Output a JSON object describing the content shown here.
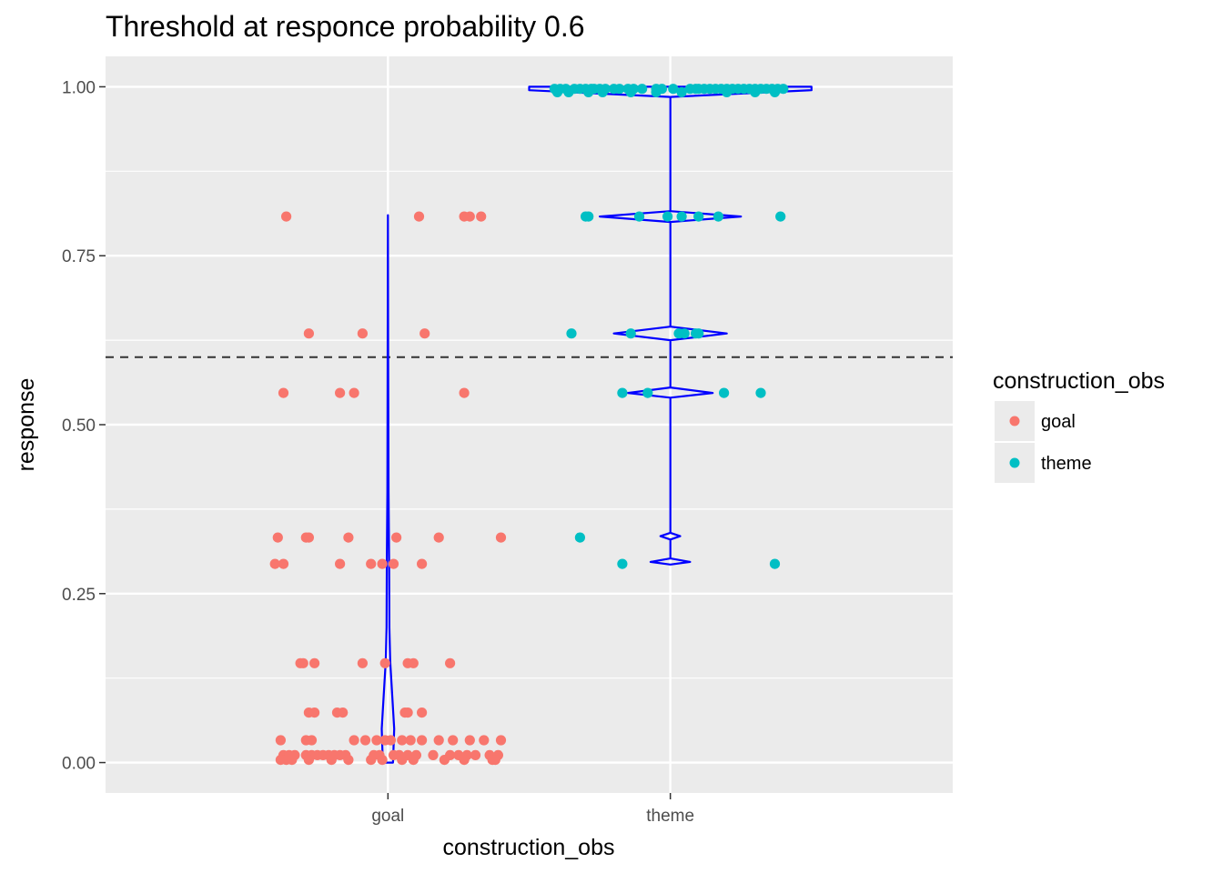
{
  "chart_data": {
    "type": "scatter",
    "title": "Threshold at responce probability 0.6",
    "xlabel": "construction_obs",
    "ylabel": "response",
    "categories": [
      "goal",
      "theme"
    ],
    "ylim": [
      -0.045,
      1.045
    ],
    "yticks": [
      0.0,
      0.25,
      0.5,
      0.75,
      1.0
    ],
    "ytick_labels": [
      "0.00",
      "0.25",
      "0.50",
      "0.75",
      "1.00"
    ],
    "threshold": 0.6,
    "grid": true,
    "legend": {
      "title": "construction_obs",
      "placement": "right",
      "entries": [
        {
          "label": "goal",
          "color": "#F8766D"
        },
        {
          "label": "theme",
          "color": "#00BFC4"
        }
      ]
    },
    "colors": {
      "goal": "#F8766D",
      "theme": "#00BFC4",
      "violin": "#0000FF",
      "threshold_line": "#333333",
      "panel": "#EBEBEB"
    },
    "violin_halfwidth": {
      "goal": [
        [
          0.0,
          0.018
        ],
        [
          0.05,
          0.022
        ],
        [
          0.1,
          0.015
        ],
        [
          0.15,
          0.008
        ],
        [
          0.2,
          0.005
        ],
        [
          0.3,
          0.004
        ],
        [
          0.4,
          0.002
        ],
        [
          0.6,
          0.001
        ],
        [
          0.81,
          0.0
        ]
      ],
      "theme": [
        [
          0.293,
          0.0
        ],
        [
          0.297,
          0.07
        ],
        [
          0.302,
          0.0
        ],
        [
          0.33,
          0.0
        ],
        [
          0.335,
          0.035
        ],
        [
          0.34,
          0.0
        ],
        [
          0.54,
          0.0
        ],
        [
          0.547,
          0.15
        ],
        [
          0.555,
          0.0
        ],
        [
          0.625,
          0.0
        ],
        [
          0.635,
          0.2
        ],
        [
          0.645,
          0.0
        ],
        [
          0.8,
          0.0
        ],
        [
          0.808,
          0.25
        ],
        [
          0.816,
          0.0
        ],
        [
          0.985,
          0.0
        ],
        [
          0.995,
          0.5
        ],
        [
          1.0,
          0.5
        ]
      ]
    },
    "series": [
      {
        "name": "goal",
        "points": [
          {
            "x": -0.36,
            "y": 0.808
          },
          {
            "x": 0.11,
            "y": 0.808
          },
          {
            "x": 0.27,
            "y": 0.808
          },
          {
            "x": 0.29,
            "y": 0.808
          },
          {
            "x": 0.33,
            "y": 0.808
          },
          {
            "x": -0.28,
            "y": 0.635
          },
          {
            "x": -0.09,
            "y": 0.635
          },
          {
            "x": 0.13,
            "y": 0.635
          },
          {
            "x": -0.37,
            "y": 0.547
          },
          {
            "x": -0.17,
            "y": 0.547
          },
          {
            "x": -0.12,
            "y": 0.547
          },
          {
            "x": 0.27,
            "y": 0.547
          },
          {
            "x": -0.39,
            "y": 0.333
          },
          {
            "x": -0.29,
            "y": 0.333
          },
          {
            "x": -0.28,
            "y": 0.333
          },
          {
            "x": -0.14,
            "y": 0.333
          },
          {
            "x": 0.03,
            "y": 0.333
          },
          {
            "x": 0.18,
            "y": 0.333
          },
          {
            "x": 0.4,
            "y": 0.333
          },
          {
            "x": -0.4,
            "y": 0.294
          },
          {
            "x": -0.37,
            "y": 0.294
          },
          {
            "x": -0.17,
            "y": 0.294
          },
          {
            "x": -0.06,
            "y": 0.294
          },
          {
            "x": -0.02,
            "y": 0.294
          },
          {
            "x": 0.02,
            "y": 0.294
          },
          {
            "x": 0.12,
            "y": 0.294
          },
          {
            "x": -0.31,
            "y": 0.147
          },
          {
            "x": -0.3,
            "y": 0.147
          },
          {
            "x": -0.26,
            "y": 0.147
          },
          {
            "x": -0.09,
            "y": 0.147
          },
          {
            "x": -0.01,
            "y": 0.147
          },
          {
            "x": 0.07,
            "y": 0.147
          },
          {
            "x": 0.09,
            "y": 0.147
          },
          {
            "x": 0.22,
            "y": 0.147
          },
          {
            "x": -0.28,
            "y": 0.074
          },
          {
            "x": -0.26,
            "y": 0.074
          },
          {
            "x": -0.18,
            "y": 0.074
          },
          {
            "x": -0.16,
            "y": 0.074
          },
          {
            "x": 0.06,
            "y": 0.074
          },
          {
            "x": 0.07,
            "y": 0.074
          },
          {
            "x": 0.12,
            "y": 0.074
          },
          {
            "x": -0.38,
            "y": 0.033
          },
          {
            "x": -0.29,
            "y": 0.033
          },
          {
            "x": -0.27,
            "y": 0.033
          },
          {
            "x": -0.12,
            "y": 0.033
          },
          {
            "x": -0.08,
            "y": 0.033
          },
          {
            "x": -0.04,
            "y": 0.033
          },
          {
            "x": -0.01,
            "y": 0.033
          },
          {
            "x": 0.01,
            "y": 0.033
          },
          {
            "x": 0.05,
            "y": 0.033
          },
          {
            "x": 0.08,
            "y": 0.033
          },
          {
            "x": 0.12,
            "y": 0.033
          },
          {
            "x": 0.18,
            "y": 0.033
          },
          {
            "x": 0.23,
            "y": 0.033
          },
          {
            "x": 0.29,
            "y": 0.033
          },
          {
            "x": 0.34,
            "y": 0.033
          },
          {
            "x": 0.4,
            "y": 0.033
          },
          {
            "x": -0.37,
            "y": 0.011
          },
          {
            "x": -0.35,
            "y": 0.011
          },
          {
            "x": -0.33,
            "y": 0.011
          },
          {
            "x": -0.29,
            "y": 0.011
          },
          {
            "x": -0.27,
            "y": 0.011
          },
          {
            "x": -0.25,
            "y": 0.011
          },
          {
            "x": -0.23,
            "y": 0.011
          },
          {
            "x": -0.21,
            "y": 0.011
          },
          {
            "x": -0.19,
            "y": 0.011
          },
          {
            "x": -0.17,
            "y": 0.011
          },
          {
            "x": -0.15,
            "y": 0.011
          },
          {
            "x": -0.05,
            "y": 0.011
          },
          {
            "x": -0.03,
            "y": 0.011
          },
          {
            "x": 0.02,
            "y": 0.011
          },
          {
            "x": 0.04,
            "y": 0.011
          },
          {
            "x": 0.07,
            "y": 0.011
          },
          {
            "x": 0.1,
            "y": 0.011
          },
          {
            "x": 0.16,
            "y": 0.011
          },
          {
            "x": 0.22,
            "y": 0.011
          },
          {
            "x": 0.25,
            "y": 0.011
          },
          {
            "x": 0.28,
            "y": 0.011
          },
          {
            "x": 0.31,
            "y": 0.011
          },
          {
            "x": 0.36,
            "y": 0.011
          },
          {
            "x": 0.39,
            "y": 0.011
          },
          {
            "x": -0.38,
            "y": 0.004
          },
          {
            "x": -0.36,
            "y": 0.004
          },
          {
            "x": -0.34,
            "y": 0.004
          },
          {
            "x": -0.28,
            "y": 0.004
          },
          {
            "x": -0.2,
            "y": 0.004
          },
          {
            "x": -0.14,
            "y": 0.004
          },
          {
            "x": -0.06,
            "y": 0.004
          },
          {
            "x": -0.02,
            "y": 0.004
          },
          {
            "x": 0.05,
            "y": 0.004
          },
          {
            "x": 0.09,
            "y": 0.004
          },
          {
            "x": 0.2,
            "y": 0.004
          },
          {
            "x": 0.27,
            "y": 0.004
          },
          {
            "x": 0.37,
            "y": 0.004
          },
          {
            "x": 0.38,
            "y": 0.004
          }
        ]
      },
      {
        "name": "theme",
        "points": [
          {
            "x": -0.41,
            "y": 0.997
          },
          {
            "x": -0.39,
            "y": 0.997
          },
          {
            "x": -0.37,
            "y": 0.997
          },
          {
            "x": -0.34,
            "y": 0.997
          },
          {
            "x": -0.32,
            "y": 0.997
          },
          {
            "x": -0.3,
            "y": 0.997
          },
          {
            "x": -0.28,
            "y": 0.997
          },
          {
            "x": -0.27,
            "y": 0.997
          },
          {
            "x": -0.25,
            "y": 0.997
          },
          {
            "x": -0.23,
            "y": 0.997
          },
          {
            "x": -0.2,
            "y": 0.997
          },
          {
            "x": -0.18,
            "y": 0.997
          },
          {
            "x": -0.15,
            "y": 0.997
          },
          {
            "x": -0.13,
            "y": 0.997
          },
          {
            "x": -0.1,
            "y": 0.997
          },
          {
            "x": -0.05,
            "y": 0.997
          },
          {
            "x": -0.03,
            "y": 0.997
          },
          {
            "x": 0.01,
            "y": 0.997
          },
          {
            "x": 0.07,
            "y": 0.997
          },
          {
            "x": 0.09,
            "y": 0.997
          },
          {
            "x": 0.1,
            "y": 0.997
          },
          {
            "x": 0.12,
            "y": 0.997
          },
          {
            "x": 0.14,
            "y": 0.997
          },
          {
            "x": 0.16,
            "y": 0.997
          },
          {
            "x": 0.18,
            "y": 0.997
          },
          {
            "x": 0.2,
            "y": 0.997
          },
          {
            "x": 0.22,
            "y": 0.997
          },
          {
            "x": 0.24,
            "y": 0.997
          },
          {
            "x": 0.26,
            "y": 0.997
          },
          {
            "x": 0.28,
            "y": 0.997
          },
          {
            "x": 0.3,
            "y": 0.997
          },
          {
            "x": 0.32,
            "y": 0.997
          },
          {
            "x": 0.34,
            "y": 0.997
          },
          {
            "x": 0.36,
            "y": 0.997
          },
          {
            "x": 0.38,
            "y": 0.997
          },
          {
            "x": 0.4,
            "y": 0.997
          },
          {
            "x": -0.4,
            "y": 0.992
          },
          {
            "x": -0.36,
            "y": 0.992
          },
          {
            "x": -0.29,
            "y": 0.992
          },
          {
            "x": -0.24,
            "y": 0.992
          },
          {
            "x": -0.14,
            "y": 0.992
          },
          {
            "x": -0.05,
            "y": 0.992
          },
          {
            "x": 0.04,
            "y": 0.992
          },
          {
            "x": 0.2,
            "y": 0.992
          },
          {
            "x": 0.3,
            "y": 0.992
          },
          {
            "x": 0.37,
            "y": 0.992
          },
          {
            "x": -0.3,
            "y": 0.808
          },
          {
            "x": -0.29,
            "y": 0.808
          },
          {
            "x": -0.11,
            "y": 0.808
          },
          {
            "x": -0.01,
            "y": 0.808
          },
          {
            "x": 0.04,
            "y": 0.808
          },
          {
            "x": 0.1,
            "y": 0.808
          },
          {
            "x": 0.17,
            "y": 0.808
          },
          {
            "x": 0.39,
            "y": 0.808
          },
          {
            "x": -0.35,
            "y": 0.635
          },
          {
            "x": -0.14,
            "y": 0.635
          },
          {
            "x": 0.03,
            "y": 0.635
          },
          {
            "x": 0.05,
            "y": 0.635
          },
          {
            "x": 0.09,
            "y": 0.635
          },
          {
            "x": 0.1,
            "y": 0.635
          },
          {
            "x": -0.17,
            "y": 0.547
          },
          {
            "x": -0.08,
            "y": 0.547
          },
          {
            "x": 0.19,
            "y": 0.547
          },
          {
            "x": 0.32,
            "y": 0.547
          },
          {
            "x": -0.32,
            "y": 0.333
          },
          {
            "x": -0.17,
            "y": 0.294
          },
          {
            "x": 0.37,
            "y": 0.294
          }
        ]
      }
    ]
  }
}
